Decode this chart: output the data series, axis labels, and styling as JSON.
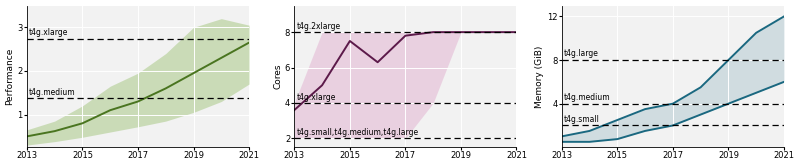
{
  "years": [
    2013,
    2014,
    2015,
    2016,
    2017,
    2018,
    2019,
    2020,
    2021
  ],
  "perf_mean": [
    0.5,
    0.62,
    0.8,
    1.1,
    1.3,
    1.6,
    1.95,
    2.3,
    2.65
  ],
  "perf_min": [
    0.3,
    0.38,
    0.48,
    0.6,
    0.72,
    0.85,
    1.05,
    1.3,
    1.7
  ],
  "perf_max": [
    0.65,
    0.85,
    1.2,
    1.65,
    1.95,
    2.4,
    3.0,
    3.2,
    3.05
  ],
  "perf_ylim": [
    0.25,
    3.5
  ],
  "perf_yticks": [
    1,
    2,
    3
  ],
  "perf_hline_xlarge": 2.73,
  "perf_hline_medium": 1.37,
  "perf_color": "#4a7520",
  "perf_fill_color": "#8ab858",
  "cores_mean": [
    3.6,
    5.0,
    7.5,
    6.3,
    7.8,
    8.0,
    8.0,
    8.0,
    8.0
  ],
  "cores_min": [
    2.0,
    2.0,
    2.0,
    2.0,
    2.0,
    4.0,
    8.0,
    8.0,
    8.0
  ],
  "cores_max": [
    4.0,
    8.0,
    8.0,
    8.0,
    8.0,
    8.0,
    8.0,
    8.0,
    8.0
  ],
  "cores_ylim": [
    1.5,
    9.5
  ],
  "cores_yticks": [
    2,
    4,
    6,
    8
  ],
  "cores_hline_2xlarge": 8.0,
  "cores_hline_xlarge": 4.0,
  "cores_hline_small": 2.0,
  "cores_color": "#5c1a4a",
  "cores_fill_color": "#e0a8cc",
  "mem_min": [
    0.5,
    0.5,
    0.75,
    1.5,
    2.0,
    3.0,
    4.0,
    5.0,
    6.0
  ],
  "mem_max": [
    1.0,
    1.5,
    2.5,
    3.5,
    4.0,
    5.5,
    8.0,
    10.5,
    12.0
  ],
  "mem_ylim": [
    0.0,
    13.0
  ],
  "mem_yticks": [
    4,
    8,
    12
  ],
  "mem_hline_large": 8.0,
  "mem_hline_medium": 4.0,
  "mem_hline_small": 2.0,
  "mem_color": "#1a6880",
  "mem_fill_color": "#b0c8d0",
  "xticks": [
    2013,
    2015,
    2017,
    2019,
    2021
  ],
  "figsize": [
    8.0,
    1.66
  ],
  "dpi": 100,
  "bg_color": "#f2f2f2"
}
